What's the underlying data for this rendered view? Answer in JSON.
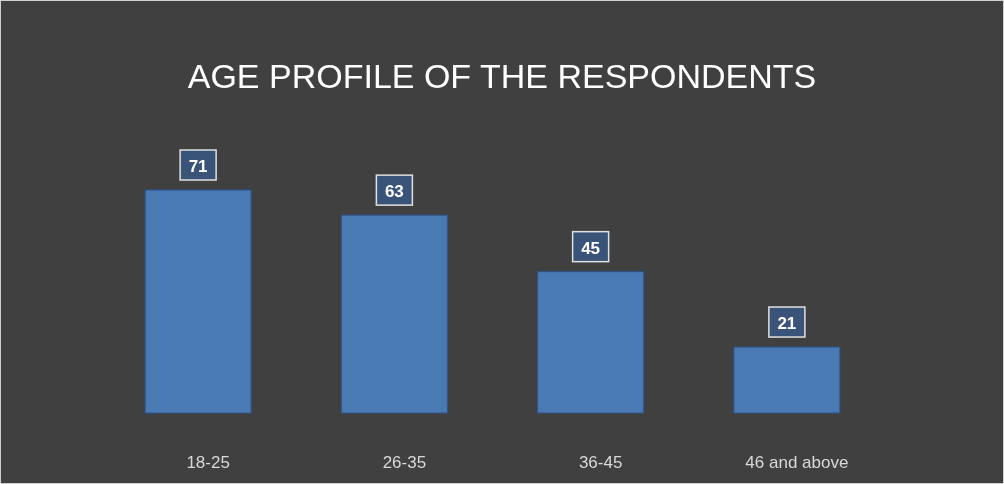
{
  "chart_data": {
    "type": "bar",
    "title": "AGE PROFILE OF THE RESPONDENTS",
    "categories": [
      "18-25",
      "26-35",
      "36-45",
      "46 and above"
    ],
    "values": [
      71,
      63,
      45,
      21
    ],
    "color": "#4a7ab4",
    "data_labels": true
  }
}
